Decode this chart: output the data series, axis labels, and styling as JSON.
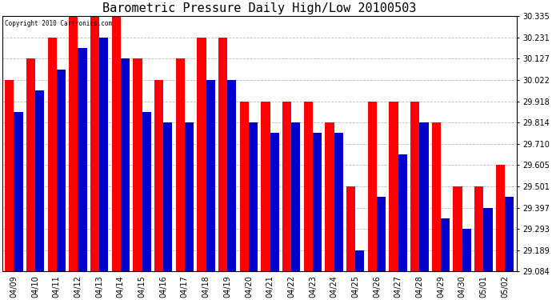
{
  "title": "Barometric Pressure Daily High/Low 20100503",
  "copyright": "Copyright 2010 Cartronics.com",
  "categories": [
    "04/09",
    "04/10",
    "04/11",
    "04/12",
    "04/13",
    "04/14",
    "04/15",
    "04/16",
    "04/17",
    "04/18",
    "04/19",
    "04/20",
    "04/21",
    "04/22",
    "04/23",
    "04/24",
    "04/25",
    "04/26",
    "04/27",
    "04/28",
    "04/29",
    "04/30",
    "05/01",
    "05/02"
  ],
  "high_values": [
    30.022,
    30.127,
    30.231,
    30.335,
    30.335,
    30.335,
    30.127,
    30.022,
    30.127,
    30.231,
    30.231,
    29.918,
    29.918,
    29.918,
    29.918,
    29.814,
    29.501,
    29.918,
    29.918,
    29.918,
    29.814,
    29.501,
    29.501,
    29.605
  ],
  "low_values": [
    29.866,
    29.97,
    30.074,
    30.179,
    30.231,
    30.127,
    29.866,
    29.814,
    29.814,
    30.022,
    30.022,
    29.814,
    29.762,
    29.814,
    29.762,
    29.762,
    29.189,
    29.449,
    29.657,
    29.814,
    29.345,
    29.293,
    29.397,
    29.449
  ],
  "bar_color_high": "#ff0000",
  "bar_color_low": "#0000cc",
  "yticks": [
    29.084,
    29.189,
    29.293,
    29.397,
    29.501,
    29.605,
    29.71,
    29.814,
    29.918,
    30.022,
    30.127,
    30.231,
    30.335
  ],
  "ymin": 29.084,
  "ymax": 30.335,
  "bg_color": "#ffffff",
  "grid_color": "#bbbbbb",
  "title_fontsize": 11,
  "tick_fontsize": 7,
  "bar_width": 0.42
}
